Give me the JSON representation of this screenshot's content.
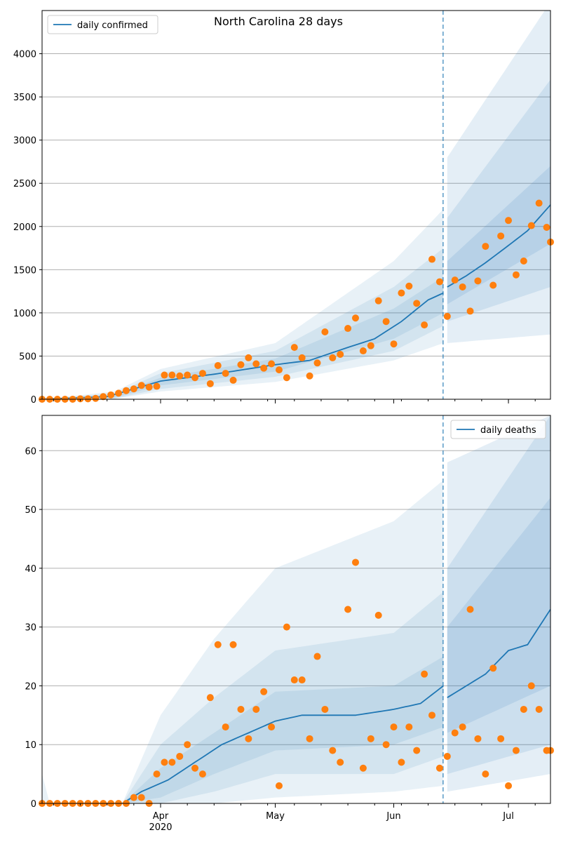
{
  "figure": {
    "title": "North Carolina 28 days"
  },
  "colors": {
    "line": "#1f77b4",
    "points": "#ff7f0e",
    "band": "#1f77b4",
    "grid": "#b0b0b0",
    "forecast_line": "#1f77b4"
  },
  "x_axis": {
    "ticks": [
      {
        "date": "2020-04-01",
        "label": "Apr",
        "sublabel": "2020"
      },
      {
        "date": "2020-05-01",
        "label": "May",
        "sublabel": ""
      },
      {
        "date": "2020-06-01",
        "label": "Jun",
        "sublabel": ""
      },
      {
        "date": "2020-07-01",
        "label": "Jul",
        "sublabel": ""
      }
    ]
  },
  "chart_data": [
    {
      "type": "line",
      "legend": "daily confirmed",
      "legend_position": "top-left",
      "grid": "y",
      "xlim": [
        "2020-03-01",
        "2020-07-12"
      ],
      "ylim": [
        0,
        4500
      ],
      "yticks": [
        0,
        500,
        1000,
        1500,
        2000,
        2500,
        3000,
        3500,
        4000
      ],
      "forecast_start": "2020-06-15",
      "line_anchors": [
        [
          "2020-03-01",
          0
        ],
        [
          "2020-03-18",
          30
        ],
        [
          "2020-03-25",
          120
        ],
        [
          "2020-04-01",
          210
        ],
        [
          "2020-04-15",
          290
        ],
        [
          "2020-05-01",
          400
        ],
        [
          "2020-05-10",
          450
        ],
        [
          "2020-05-20",
          600
        ],
        [
          "2020-05-27",
          700
        ],
        [
          "2020-06-03",
          900
        ],
        [
          "2020-06-10",
          1150
        ],
        [
          "2020-06-14",
          1230
        ],
        [
          "2020-06-15",
          1300
        ],
        [
          "2020-06-20",
          1430
        ],
        [
          "2020-06-25",
          1580
        ],
        [
          "2020-07-01",
          1780
        ],
        [
          "2020-07-06",
          1950
        ],
        [
          "2020-07-12",
          2250
        ]
      ],
      "bands": [
        {
          "name": "50%",
          "lower": [
            [
              "2020-03-01",
              0
            ],
            [
              "2020-03-20",
              20
            ],
            [
              "2020-04-01",
              160
            ],
            [
              "2020-05-01",
              320
            ],
            [
              "2020-06-01",
              700
            ],
            [
              "2020-06-14",
              1000
            ],
            [
              "2020-06-15",
              1100
            ],
            [
              "2020-07-12",
              1800
            ]
          ],
          "upper": [
            [
              "2020-03-01",
              0
            ],
            [
              "2020-03-20",
              50
            ],
            [
              "2020-04-01",
              250
            ],
            [
              "2020-05-01",
              470
            ],
            [
              "2020-06-01",
              1050
            ],
            [
              "2020-06-14",
              1420
            ],
            [
              "2020-06-15",
              1600
            ],
            [
              "2020-07-12",
              2700
            ]
          ]
        },
        {
          "name": "80%",
          "lower": [
            [
              "2020-03-01",
              0
            ],
            [
              "2020-03-20",
              10
            ],
            [
              "2020-04-01",
              120
            ],
            [
              "2020-05-01",
              260
            ],
            [
              "2020-06-01",
              560
            ],
            [
              "2020-06-14",
              850
            ],
            [
              "2020-06-15",
              900
            ],
            [
              "2020-07-12",
              1300
            ]
          ],
          "upper": [
            [
              "2020-03-01",
              0
            ],
            [
              "2020-03-20",
              70
            ],
            [
              "2020-04-01",
              300
            ],
            [
              "2020-05-01",
              560
            ],
            [
              "2020-06-01",
              1300
            ],
            [
              "2020-06-14",
              1750
            ],
            [
              "2020-06-15",
              2100
            ],
            [
              "2020-07-12",
              3700
            ]
          ]
        },
        {
          "name": "95%",
          "lower": [
            [
              "2020-03-01",
              0
            ],
            [
              "2020-03-20",
              5
            ],
            [
              "2020-04-01",
              90
            ],
            [
              "2020-05-01",
              200
            ],
            [
              "2020-06-01",
              450
            ],
            [
              "2020-06-14",
              650
            ],
            [
              "2020-06-15",
              650
            ],
            [
              "2020-07-12",
              750
            ]
          ],
          "upper": [
            [
              "2020-03-01",
              0
            ],
            [
              "2020-03-20",
              90
            ],
            [
              "2020-04-01",
              350
            ],
            [
              "2020-05-01",
              650
            ],
            [
              "2020-06-01",
              1600
            ],
            [
              "2020-06-14",
              2200
            ],
            [
              "2020-06-15",
              2800
            ],
            [
              "2020-07-12",
              4600
            ]
          ]
        }
      ],
      "points": [
        [
          "2020-03-01",
          0
        ],
        [
          "2020-03-03",
          0
        ],
        [
          "2020-03-05",
          0
        ],
        [
          "2020-03-07",
          0
        ],
        [
          "2020-03-09",
          0
        ],
        [
          "2020-03-11",
          5
        ],
        [
          "2020-03-13",
          5
        ],
        [
          "2020-03-15",
          10
        ],
        [
          "2020-03-17",
          30
        ],
        [
          "2020-03-19",
          50
        ],
        [
          "2020-03-21",
          70
        ],
        [
          "2020-03-23",
          100
        ],
        [
          "2020-03-25",
          120
        ],
        [
          "2020-03-27",
          160
        ],
        [
          "2020-03-29",
          140
        ],
        [
          "2020-03-31",
          150
        ],
        [
          "2020-04-02",
          280
        ],
        [
          "2020-04-04",
          280
        ],
        [
          "2020-04-06",
          270
        ],
        [
          "2020-04-08",
          280
        ],
        [
          "2020-04-10",
          250
        ],
        [
          "2020-04-12",
          300
        ],
        [
          "2020-04-14",
          180
        ],
        [
          "2020-04-16",
          390
        ],
        [
          "2020-04-18",
          300
        ],
        [
          "2020-04-20",
          220
        ],
        [
          "2020-04-22",
          400
        ],
        [
          "2020-04-24",
          480
        ],
        [
          "2020-04-26",
          410
        ],
        [
          "2020-04-28",
          360
        ],
        [
          "2020-04-30",
          410
        ],
        [
          "2020-05-02",
          340
        ],
        [
          "2020-05-04",
          250
        ],
        [
          "2020-05-06",
          600
        ],
        [
          "2020-05-08",
          480
        ],
        [
          "2020-05-10",
          270
        ],
        [
          "2020-05-12",
          420
        ],
        [
          "2020-05-14",
          780
        ],
        [
          "2020-05-16",
          480
        ],
        [
          "2020-05-18",
          520
        ],
        [
          "2020-05-20",
          820
        ],
        [
          "2020-05-22",
          940
        ],
        [
          "2020-05-24",
          560
        ],
        [
          "2020-05-26",
          620
        ],
        [
          "2020-05-28",
          1140
        ],
        [
          "2020-05-30",
          900
        ],
        [
          "2020-06-01",
          640
        ],
        [
          "2020-06-03",
          1230
        ],
        [
          "2020-06-05",
          1310
        ],
        [
          "2020-06-07",
          1110
        ],
        [
          "2020-06-09",
          860
        ],
        [
          "2020-06-11",
          1620
        ],
        [
          "2020-06-13",
          1360
        ],
        [
          "2020-06-15",
          960
        ],
        [
          "2020-06-17",
          1380
        ],
        [
          "2020-06-19",
          1300
        ],
        [
          "2020-06-21",
          1020
        ],
        [
          "2020-06-23",
          1370
        ],
        [
          "2020-06-25",
          1770
        ],
        [
          "2020-06-27",
          1320
        ],
        [
          "2020-06-29",
          1890
        ],
        [
          "2020-07-01",
          2070
        ],
        [
          "2020-07-03",
          1440
        ],
        [
          "2020-07-05",
          1600
        ],
        [
          "2020-07-07",
          2010
        ],
        [
          "2020-07-09",
          2270
        ],
        [
          "2020-07-11",
          1990
        ],
        [
          "2020-07-12",
          1820
        ]
      ]
    },
    {
      "type": "line",
      "legend": "daily deaths",
      "legend_position": "top-right",
      "grid": "y",
      "xlim": [
        "2020-03-01",
        "2020-07-12"
      ],
      "ylim": [
        0,
        66
      ],
      "yticks": [
        0,
        10,
        20,
        30,
        40,
        50,
        60
      ],
      "forecast_start": "2020-06-15",
      "line_anchors": [
        [
          "2020-03-01",
          0
        ],
        [
          "2020-03-22",
          0
        ],
        [
          "2020-03-27",
          2
        ],
        [
          "2020-04-03",
          4
        ],
        [
          "2020-04-10",
          7
        ],
        [
          "2020-04-17",
          10
        ],
        [
          "2020-04-24",
          12
        ],
        [
          "2020-05-01",
          14
        ],
        [
          "2020-05-08",
          15
        ],
        [
          "2020-05-15",
          15
        ],
        [
          "2020-05-22",
          15
        ],
        [
          "2020-06-01",
          16
        ],
        [
          "2020-06-08",
          17
        ],
        [
          "2020-06-14",
          20
        ],
        [
          "2020-06-15",
          18
        ],
        [
          "2020-06-20",
          20
        ],
        [
          "2020-06-25",
          22
        ],
        [
          "2020-07-01",
          26
        ],
        [
          "2020-07-06",
          27
        ],
        [
          "2020-07-12",
          33
        ]
      ],
      "bands": [
        {
          "name": "50%",
          "lower": [
            [
              "2020-03-01",
              0
            ],
            [
              "2020-03-22",
              0
            ],
            [
              "2020-04-01",
              1
            ],
            [
              "2020-04-15",
              5
            ],
            [
              "2020-05-01",
              9
            ],
            [
              "2020-06-01",
              10
            ],
            [
              "2020-06-14",
              13
            ],
            [
              "2020-06-15",
              12
            ],
            [
              "2020-07-12",
              20
            ]
          ],
          "upper": [
            [
              "2020-03-01",
              0
            ],
            [
              "2020-03-22",
              0
            ],
            [
              "2020-04-01",
              6
            ],
            [
              "2020-04-15",
              12
            ],
            [
              "2020-05-01",
              19
            ],
            [
              "2020-06-01",
              20
            ],
            [
              "2020-06-14",
              25
            ],
            [
              "2020-06-15",
              30
            ],
            [
              "2020-07-12",
              52
            ]
          ]
        },
        {
          "name": "80%",
          "lower": [
            [
              "2020-03-01",
              0
            ],
            [
              "2020-03-22",
              0
            ],
            [
              "2020-04-01",
              0
            ],
            [
              "2020-04-15",
              2
            ],
            [
              "2020-05-01",
              5
            ],
            [
              "2020-06-01",
              5
            ],
            [
              "2020-06-14",
              8
            ],
            [
              "2020-06-15",
              5
            ],
            [
              "2020-07-12",
              10
            ]
          ],
          "upper": [
            [
              "2020-03-01",
              0
            ],
            [
              "2020-03-22",
              0
            ],
            [
              "2020-04-01",
              10
            ],
            [
              "2020-04-15",
              18
            ],
            [
              "2020-05-01",
              26
            ],
            [
              "2020-06-01",
              29
            ],
            [
              "2020-06-14",
              36
            ],
            [
              "2020-06-15",
              40
            ],
            [
              "2020-07-12",
              66
            ]
          ]
        },
        {
          "name": "95%",
          "lower": [
            [
              "2020-03-01",
              0
            ],
            [
              "2020-03-22",
              0
            ],
            [
              "2020-04-15",
              0
            ],
            [
              "2020-05-01",
              1
            ],
            [
              "2020-06-01",
              2
            ],
            [
              "2020-06-14",
              3
            ],
            [
              "2020-06-15",
              2
            ],
            [
              "2020-07-12",
              5
            ]
          ],
          "upper": [
            [
              "2020-03-01",
              5
            ],
            [
              "2020-03-03",
              0
            ],
            [
              "2020-03-22",
              0
            ],
            [
              "2020-04-01",
              15
            ],
            [
              "2020-04-15",
              28
            ],
            [
              "2020-05-01",
              40
            ],
            [
              "2020-06-01",
              48
            ],
            [
              "2020-06-14",
              55
            ],
            [
              "2020-06-15",
              58
            ],
            [
              "2020-07-12",
              66
            ]
          ]
        }
      ],
      "points": [
        [
          "2020-03-01",
          0
        ],
        [
          "2020-03-03",
          0
        ],
        [
          "2020-03-05",
          0
        ],
        [
          "2020-03-07",
          0
        ],
        [
          "2020-03-09",
          0
        ],
        [
          "2020-03-11",
          0
        ],
        [
          "2020-03-13",
          0
        ],
        [
          "2020-03-15",
          0
        ],
        [
          "2020-03-17",
          0
        ],
        [
          "2020-03-19",
          0
        ],
        [
          "2020-03-21",
          0
        ],
        [
          "2020-03-23",
          0
        ],
        [
          "2020-03-25",
          1
        ],
        [
          "2020-03-27",
          1
        ],
        [
          "2020-03-29",
          0
        ],
        [
          "2020-03-31",
          5
        ],
        [
          "2020-04-02",
          7
        ],
        [
          "2020-04-04",
          7
        ],
        [
          "2020-04-06",
          8
        ],
        [
          "2020-04-08",
          10
        ],
        [
          "2020-04-10",
          6
        ],
        [
          "2020-04-12",
          5
        ],
        [
          "2020-04-14",
          18
        ],
        [
          "2020-04-16",
          27
        ],
        [
          "2020-04-18",
          13
        ],
        [
          "2020-04-20",
          27
        ],
        [
          "2020-04-22",
          16
        ],
        [
          "2020-04-24",
          11
        ],
        [
          "2020-04-26",
          16
        ],
        [
          "2020-04-28",
          19
        ],
        [
          "2020-04-30",
          13
        ],
        [
          "2020-05-02",
          3
        ],
        [
          "2020-05-04",
          30
        ],
        [
          "2020-05-06",
          21
        ],
        [
          "2020-05-08",
          21
        ],
        [
          "2020-05-10",
          11
        ],
        [
          "2020-05-12",
          25
        ],
        [
          "2020-05-14",
          16
        ],
        [
          "2020-05-16",
          9
        ],
        [
          "2020-05-18",
          7
        ],
        [
          "2020-05-20",
          33
        ],
        [
          "2020-05-22",
          41
        ],
        [
          "2020-05-24",
          6
        ],
        [
          "2020-05-26",
          11
        ],
        [
          "2020-05-28",
          32
        ],
        [
          "2020-05-30",
          10
        ],
        [
          "2020-06-01",
          13
        ],
        [
          "2020-06-03",
          7
        ],
        [
          "2020-06-05",
          13
        ],
        [
          "2020-06-07",
          9
        ],
        [
          "2020-06-09",
          22
        ],
        [
          "2020-06-11",
          15
        ],
        [
          "2020-06-13",
          6
        ],
        [
          "2020-06-15",
          8
        ],
        [
          "2020-06-17",
          12
        ],
        [
          "2020-06-19",
          13
        ],
        [
          "2020-06-21",
          33
        ],
        [
          "2020-06-23",
          11
        ],
        [
          "2020-06-25",
          5
        ],
        [
          "2020-06-27",
          23
        ],
        [
          "2020-06-29",
          11
        ],
        [
          "2020-07-01",
          3
        ],
        [
          "2020-07-03",
          9
        ],
        [
          "2020-07-05",
          16
        ],
        [
          "2020-07-07",
          20
        ],
        [
          "2020-07-09",
          16
        ],
        [
          "2020-07-11",
          9
        ],
        [
          "2020-07-12",
          9
        ]
      ]
    }
  ]
}
